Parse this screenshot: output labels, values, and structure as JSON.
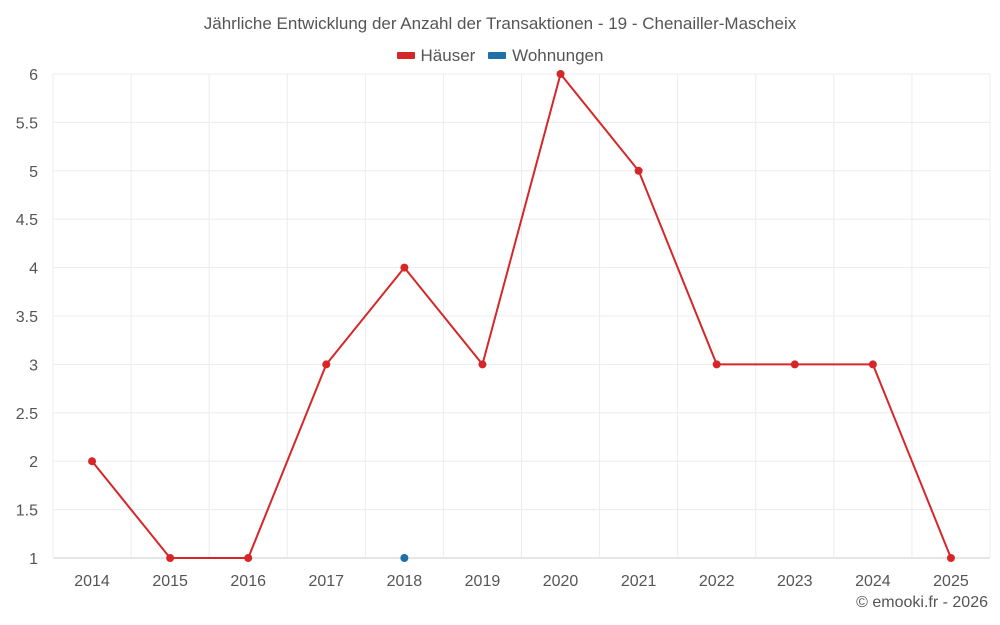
{
  "chart_data": {
    "type": "line",
    "title": "Jährliche Entwicklung der Anzahl der Transaktionen - 19 - Chenailler-Mascheix",
    "xlabel": "",
    "ylabel": "",
    "categories": [
      "2014",
      "2015",
      "2016",
      "2017",
      "2018",
      "2019",
      "2020",
      "2021",
      "2022",
      "2023",
      "2024",
      "2025"
    ],
    "ylim": [
      1,
      6
    ],
    "yticks": [
      "1",
      "1.5",
      "2",
      "2.5",
      "3",
      "3.5",
      "4",
      "4.5",
      "5",
      "5.5",
      "6"
    ],
    "grid": true,
    "legend_position": "top-center",
    "series": [
      {
        "name": "Häuser",
        "color": "#d62728",
        "values": [
          2,
          1,
          1,
          3,
          4,
          3,
          6,
          5,
          3,
          3,
          3,
          1
        ]
      },
      {
        "name": "Wohnungen",
        "color": "#1f6fa8",
        "values": [
          null,
          null,
          null,
          null,
          1,
          null,
          null,
          null,
          null,
          null,
          null,
          null
        ]
      }
    ]
  },
  "footer": "© emooki.fr - 2026"
}
